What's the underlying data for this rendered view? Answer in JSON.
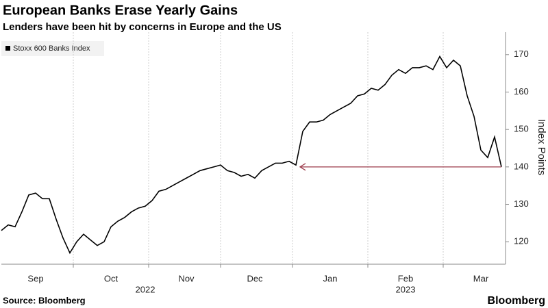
{
  "chart_data": {
    "type": "line",
    "title": "European Banks Erase Yearly Gains",
    "subtitle": "Lenders have been hit by concerns in Europe and the US",
    "categories": [
      null,
      null,
      null,
      null,
      null,
      "Sep",
      null,
      null,
      null,
      null,
      null,
      null,
      null,
      null,
      null,
      null,
      "Oct",
      null,
      null,
      null,
      null,
      null,
      null,
      null,
      null,
      null,
      null,
      "Nov",
      null,
      null,
      null,
      null,
      null,
      null,
      null,
      null,
      null,
      "Dec",
      null,
      null,
      null,
      null,
      null,
      null,
      null,
      null,
      null,
      null,
      "Jan",
      null,
      null,
      null,
      null,
      null,
      null,
      null,
      null,
      null,
      null,
      "Feb",
      null,
      null,
      null,
      null,
      null,
      null,
      null,
      null,
      null,
      null,
      "Mar",
      null,
      null,
      null
    ],
    "year_labels": [
      "2022",
      "2023"
    ],
    "series": [
      {
        "name": "Stoxx 600 Banks Index",
        "color": "#000000",
        "values": [
          123,
          124.5,
          124,
          128,
          132.5,
          133,
          131.5,
          131.5,
          126,
          121,
          117,
          120,
          122,
          120.5,
          119,
          120,
          124,
          125.5,
          126.5,
          128,
          129,
          129.5,
          131,
          133.5,
          134,
          135,
          136,
          137,
          138,
          139,
          139.5,
          140,
          140.5,
          139,
          138.5,
          137.5,
          138,
          137,
          139,
          140,
          141,
          141,
          141.5,
          140.5,
          149.5,
          152,
          152,
          152.5,
          154,
          155,
          156,
          157,
          159,
          159.5,
          161,
          160.5,
          162,
          164.5,
          166,
          165,
          166.5,
          166.5,
          167,
          166,
          169.5,
          166.5,
          168.5,
          167,
          159,
          153.5,
          144.5,
          142.5,
          148,
          140
        ]
      }
    ],
    "ylim": [
      114,
      176
    ],
    "yticks": [
      120,
      130,
      140,
      150,
      160,
      170
    ],
    "y_label": "Index Points",
    "annotation_color": "#9b3a4a",
    "source": "Source: Bloomberg",
    "logo": "Bloomberg"
  }
}
